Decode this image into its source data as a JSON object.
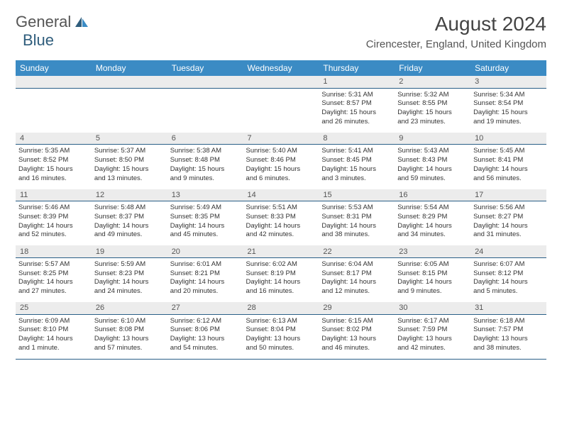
{
  "logo": {
    "text_general": "General",
    "text_blue": "Blue"
  },
  "title": "August 2024",
  "location": "Cirencester, England, United Kingdom",
  "day_headers": [
    "Sunday",
    "Monday",
    "Tuesday",
    "Wednesday",
    "Thursday",
    "Friday",
    "Saturday"
  ],
  "colors": {
    "header_bg": "#3b8bc4",
    "header_text": "#ffffff",
    "daynum_bg": "#ececec",
    "border": "#2a5f87",
    "text": "#333333"
  },
  "weeks": [
    {
      "days": [
        {
          "num": "",
          "lines": []
        },
        {
          "num": "",
          "lines": []
        },
        {
          "num": "",
          "lines": []
        },
        {
          "num": "",
          "lines": []
        },
        {
          "num": "1",
          "lines": [
            "Sunrise: 5:31 AM",
            "Sunset: 8:57 PM",
            "Daylight: 15 hours",
            "and 26 minutes."
          ]
        },
        {
          "num": "2",
          "lines": [
            "Sunrise: 5:32 AM",
            "Sunset: 8:55 PM",
            "Daylight: 15 hours",
            "and 23 minutes."
          ]
        },
        {
          "num": "3",
          "lines": [
            "Sunrise: 5:34 AM",
            "Sunset: 8:54 PM",
            "Daylight: 15 hours",
            "and 19 minutes."
          ]
        }
      ]
    },
    {
      "days": [
        {
          "num": "4",
          "lines": [
            "Sunrise: 5:35 AM",
            "Sunset: 8:52 PM",
            "Daylight: 15 hours",
            "and 16 minutes."
          ]
        },
        {
          "num": "5",
          "lines": [
            "Sunrise: 5:37 AM",
            "Sunset: 8:50 PM",
            "Daylight: 15 hours",
            "and 13 minutes."
          ]
        },
        {
          "num": "6",
          "lines": [
            "Sunrise: 5:38 AM",
            "Sunset: 8:48 PM",
            "Daylight: 15 hours",
            "and 9 minutes."
          ]
        },
        {
          "num": "7",
          "lines": [
            "Sunrise: 5:40 AM",
            "Sunset: 8:46 PM",
            "Daylight: 15 hours",
            "and 6 minutes."
          ]
        },
        {
          "num": "8",
          "lines": [
            "Sunrise: 5:41 AM",
            "Sunset: 8:45 PM",
            "Daylight: 15 hours",
            "and 3 minutes."
          ]
        },
        {
          "num": "9",
          "lines": [
            "Sunrise: 5:43 AM",
            "Sunset: 8:43 PM",
            "Daylight: 14 hours",
            "and 59 minutes."
          ]
        },
        {
          "num": "10",
          "lines": [
            "Sunrise: 5:45 AM",
            "Sunset: 8:41 PM",
            "Daylight: 14 hours",
            "and 56 minutes."
          ]
        }
      ]
    },
    {
      "days": [
        {
          "num": "11",
          "lines": [
            "Sunrise: 5:46 AM",
            "Sunset: 8:39 PM",
            "Daylight: 14 hours",
            "and 52 minutes."
          ]
        },
        {
          "num": "12",
          "lines": [
            "Sunrise: 5:48 AM",
            "Sunset: 8:37 PM",
            "Daylight: 14 hours",
            "and 49 minutes."
          ]
        },
        {
          "num": "13",
          "lines": [
            "Sunrise: 5:49 AM",
            "Sunset: 8:35 PM",
            "Daylight: 14 hours",
            "and 45 minutes."
          ]
        },
        {
          "num": "14",
          "lines": [
            "Sunrise: 5:51 AM",
            "Sunset: 8:33 PM",
            "Daylight: 14 hours",
            "and 42 minutes."
          ]
        },
        {
          "num": "15",
          "lines": [
            "Sunrise: 5:53 AM",
            "Sunset: 8:31 PM",
            "Daylight: 14 hours",
            "and 38 minutes."
          ]
        },
        {
          "num": "16",
          "lines": [
            "Sunrise: 5:54 AM",
            "Sunset: 8:29 PM",
            "Daylight: 14 hours",
            "and 34 minutes."
          ]
        },
        {
          "num": "17",
          "lines": [
            "Sunrise: 5:56 AM",
            "Sunset: 8:27 PM",
            "Daylight: 14 hours",
            "and 31 minutes."
          ]
        }
      ]
    },
    {
      "days": [
        {
          "num": "18",
          "lines": [
            "Sunrise: 5:57 AM",
            "Sunset: 8:25 PM",
            "Daylight: 14 hours",
            "and 27 minutes."
          ]
        },
        {
          "num": "19",
          "lines": [
            "Sunrise: 5:59 AM",
            "Sunset: 8:23 PM",
            "Daylight: 14 hours",
            "and 24 minutes."
          ]
        },
        {
          "num": "20",
          "lines": [
            "Sunrise: 6:01 AM",
            "Sunset: 8:21 PM",
            "Daylight: 14 hours",
            "and 20 minutes."
          ]
        },
        {
          "num": "21",
          "lines": [
            "Sunrise: 6:02 AM",
            "Sunset: 8:19 PM",
            "Daylight: 14 hours",
            "and 16 minutes."
          ]
        },
        {
          "num": "22",
          "lines": [
            "Sunrise: 6:04 AM",
            "Sunset: 8:17 PM",
            "Daylight: 14 hours",
            "and 12 minutes."
          ]
        },
        {
          "num": "23",
          "lines": [
            "Sunrise: 6:05 AM",
            "Sunset: 8:15 PM",
            "Daylight: 14 hours",
            "and 9 minutes."
          ]
        },
        {
          "num": "24",
          "lines": [
            "Sunrise: 6:07 AM",
            "Sunset: 8:12 PM",
            "Daylight: 14 hours",
            "and 5 minutes."
          ]
        }
      ]
    },
    {
      "days": [
        {
          "num": "25",
          "lines": [
            "Sunrise: 6:09 AM",
            "Sunset: 8:10 PM",
            "Daylight: 14 hours",
            "and 1 minute."
          ]
        },
        {
          "num": "26",
          "lines": [
            "Sunrise: 6:10 AM",
            "Sunset: 8:08 PM",
            "Daylight: 13 hours",
            "and 57 minutes."
          ]
        },
        {
          "num": "27",
          "lines": [
            "Sunrise: 6:12 AM",
            "Sunset: 8:06 PM",
            "Daylight: 13 hours",
            "and 54 minutes."
          ]
        },
        {
          "num": "28",
          "lines": [
            "Sunrise: 6:13 AM",
            "Sunset: 8:04 PM",
            "Daylight: 13 hours",
            "and 50 minutes."
          ]
        },
        {
          "num": "29",
          "lines": [
            "Sunrise: 6:15 AM",
            "Sunset: 8:02 PM",
            "Daylight: 13 hours",
            "and 46 minutes."
          ]
        },
        {
          "num": "30",
          "lines": [
            "Sunrise: 6:17 AM",
            "Sunset: 7:59 PM",
            "Daylight: 13 hours",
            "and 42 minutes."
          ]
        },
        {
          "num": "31",
          "lines": [
            "Sunrise: 6:18 AM",
            "Sunset: 7:57 PM",
            "Daylight: 13 hours",
            "and 38 minutes."
          ]
        }
      ]
    }
  ]
}
